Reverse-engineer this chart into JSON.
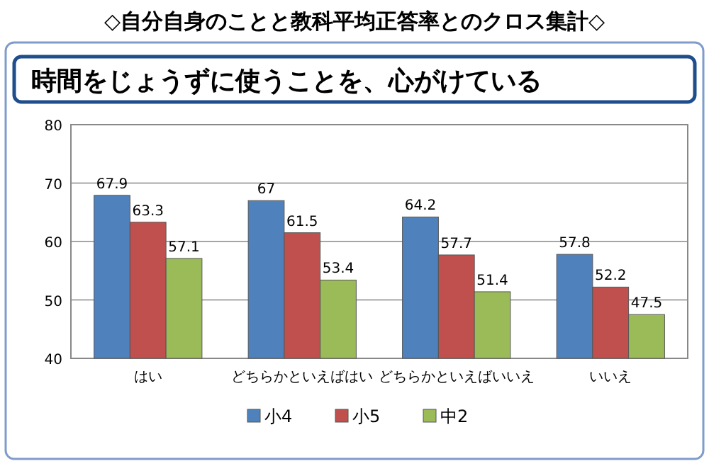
{
  "chart_data": {
    "type": "bar",
    "title": "◇自分自身のことと教科平均正答率とのクロス集計◇",
    "subtitle": "時間をじょうずに使うことを、心がけている",
    "categories": [
      "はい",
      "どちらかといえばはい",
      "どちらかといえばいいえ",
      "いいえ"
    ],
    "series": [
      {
        "name": "小4",
        "color": "#4f81bd",
        "values": [
          67.9,
          67,
          64.2,
          57.8
        ]
      },
      {
        "name": "小5",
        "color": "#c0504d",
        "values": [
          63.3,
          61.5,
          57.7,
          52.2
        ]
      },
      {
        "name": "中2",
        "color": "#9bbb59",
        "values": [
          57.1,
          53.4,
          51.4,
          47.5
        ]
      }
    ],
    "ylim": [
      40,
      80
    ],
    "yticks": [
      40,
      50,
      60,
      70,
      80
    ],
    "grid": "y",
    "legend": "bottom",
    "data_labels": true
  }
}
